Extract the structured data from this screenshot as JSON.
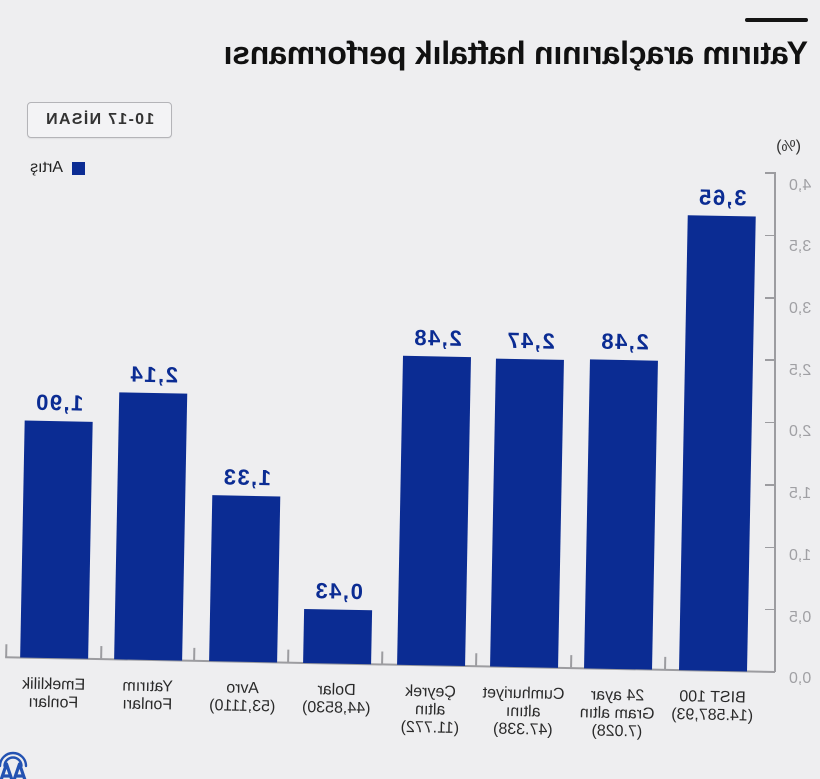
{
  "header": {
    "title": "Yatırım araçlarının haftalık performansı",
    "date_range": "10-17 NİSAN"
  },
  "legend": {
    "items": [
      {
        "label": "Artış",
        "color": "#0b2c93"
      }
    ]
  },
  "colors": {
    "bar": "#0b2c93",
    "axis": "#9c9ca0",
    "background": "#eeeef0",
    "logo": "#2352b2"
  },
  "branding": {
    "logo": "AA"
  },
  "chart_data": {
    "type": "bar",
    "title": "Yatırım araçlarının haftalık performansı",
    "subtitle": "10-17 NİSAN",
    "categories": [
      "BIST 100 (14.587,93)",
      "24 ayar Gram altın (7.028)",
      "Cumhuriyet altını (47.338)",
      "Çeyrek altın (11.772)",
      "Dolar (44,8530)",
      "Avro (53,1110)",
      "Yatırım Fonları",
      "Emeklilik Fonları"
    ],
    "category_labels": [
      "BIST 100\n(14.587,93)",
      "24 ayar\nGram altın\n(7.028)",
      "Cumhuriyet\naltını\n(47.338)",
      "Çeyrek\naltın\n(11.772)",
      "Dolar\n(44,8530)",
      "Avro\n(53,1110)",
      "Yatırım\nFonları",
      "Emeklilik\nFonları"
    ],
    "series": [
      {
        "name": "Artış",
        "color": "#0b2c93",
        "values": [
          3.65,
          2.48,
          2.47,
          2.48,
          0.43,
          1.33,
          2.14,
          1.9
        ]
      }
    ],
    "data_labels": [
      "3,65",
      "2,48",
      "2,47",
      "2,48",
      "0,43",
      "1,33",
      "2,14",
      "1,90"
    ],
    "xlabel": "",
    "ylabel": "(%)",
    "ylim": [
      0,
      4.0
    ],
    "yticks": [
      0,
      0.5,
      1.0,
      1.5,
      2.0,
      2.5,
      3.0,
      3.5,
      4.0
    ],
    "ytick_labels": [
      "0,0",
      "0,5",
      "1,0",
      "1,5",
      "2,0",
      "2,5",
      "3,0",
      "3,5",
      "4,0"
    ],
    "grid": false,
    "legend_position": "top-right"
  }
}
